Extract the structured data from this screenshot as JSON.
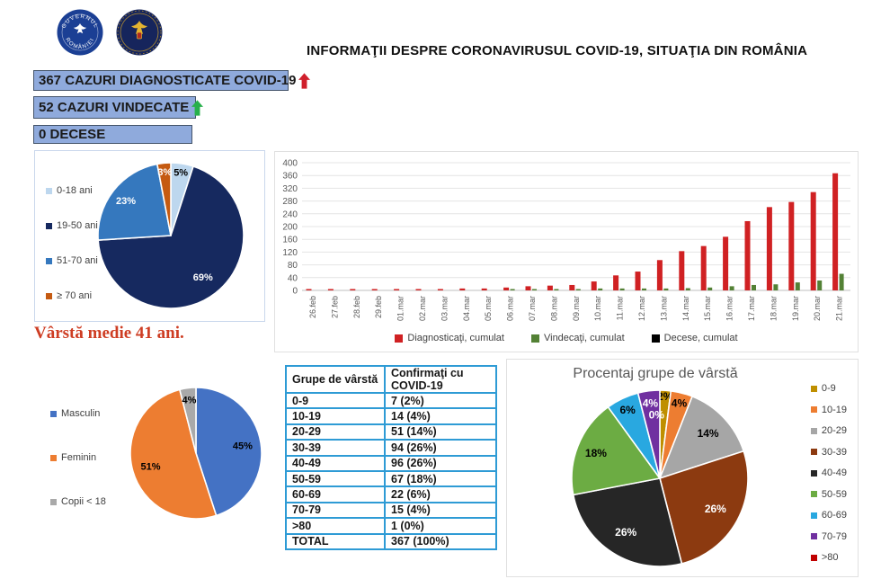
{
  "header": {
    "title": "INFORMAŢII DESPRE CORONAVIRUSUL COVID-19, SITUAŢIA DIN ROMÂNIA",
    "logo1_text_top": "GUVERNUL",
    "logo1_text_bottom": "ROMÂNIEI"
  },
  "stats": [
    {
      "label": "367 CAZURI DIAGNOSTICATE COVID-19",
      "arrow": "up",
      "arrow_color": "#D0202C"
    },
    {
      "label": "52 CAZURI VINDECATE",
      "arrow": "up",
      "arrow_color": "#27B04B"
    },
    {
      "label": "0 DECESE",
      "arrow": null,
      "arrow_color": null
    }
  ],
  "average_age_note": "Vârstă medie 41 ani.",
  "colors": {
    "stat_box_bg": "#8FAADC",
    "stat_box_border": "#44546A",
    "table_border": "#2E9BD5",
    "note_red": "#CE3D23",
    "panel_border": "#E0E0E0",
    "pie_panel_border": "#C9D7EC"
  },
  "table": {
    "headers": [
      "Grupe de vârstă",
      "Confirmaţi cu COVID-19"
    ],
    "rows": [
      [
        "0-9",
        "7 (2%)"
      ],
      [
        "10-19",
        "14 (4%)"
      ],
      [
        "20-29",
        "51 (14%)"
      ],
      [
        "30-39",
        "94 (26%)"
      ],
      [
        "40-49",
        "96 (26%)"
      ],
      [
        "50-59",
        "67 (18%)"
      ],
      [
        "60-69",
        "22 (6%)"
      ],
      [
        "70-79",
        "15 (4%)"
      ],
      [
        ">80",
        "1 (0%)"
      ],
      [
        "TOTAL",
        "367 (100%)"
      ]
    ]
  },
  "chart_data": [
    {
      "type": "pie",
      "name": "age-groups-pie",
      "labels": [
        "0-18 ani",
        "19-50 ani",
        "51-70 ani",
        "≥ 70 ani"
      ],
      "values": [
        5,
        69,
        23,
        3
      ],
      "colors": [
        "#BDD7EE",
        "#16295F",
        "#3578BE",
        "#C55A11"
      ],
      "slice_labels": [
        "5%",
        "69%",
        "23%",
        "3%"
      ],
      "slice_label_colors": [
        "#000000",
        "#FFFFFF",
        "#FFFFFF",
        "#FFFFFF"
      ],
      "slice_label_r": [
        0.88,
        0.72,
        0.78,
        0.88
      ],
      "slice_label_size": 11,
      "legend_position": "left"
    },
    {
      "type": "bar",
      "name": "cumulative-cases-bar",
      "categories": [
        "26.feb",
        "27.feb",
        "28.feb",
        "29.feb",
        "01.mar",
        "02.mar",
        "03.mar",
        "04.mar",
        "05.mar",
        "06.mar",
        "07.mar",
        "08.mar",
        "09.mar",
        "10.mar",
        "11.mar",
        "12.mar",
        "13.mar",
        "14.mar",
        "15.mar",
        "16.mar",
        "17.mar",
        "18.mar",
        "19.mar",
        "20.mar",
        "21.mar"
      ],
      "series": [
        {
          "name": "Diagnosticaţi, cumulat",
          "color": "#D02123",
          "values": [
            1,
            3,
            3,
            3,
            3,
            3,
            4,
            6,
            6,
            9,
            13,
            15,
            17,
            28,
            47,
            59,
            95,
            123,
            139,
            168,
            217,
            261,
            277,
            308,
            367
          ]
        },
        {
          "name": "Vindecaţi, cumulat",
          "color": "#538135",
          "values": [
            0,
            0,
            0,
            0,
            0,
            0,
            0,
            0,
            0,
            1,
            1,
            3,
            3,
            6,
            6,
            6,
            6,
            7,
            9,
            13,
            17,
            19,
            25,
            31,
            52
          ]
        },
        {
          "name": "Decese, cumulat",
          "color": "#000000",
          "values": [
            0,
            0,
            0,
            0,
            0,
            0,
            0,
            0,
            0,
            0,
            0,
            0,
            0,
            0,
            0,
            0,
            0,
            0,
            0,
            0,
            0,
            0,
            0,
            0,
            0
          ]
        }
      ],
      "ylim": [
        0,
        400
      ],
      "ytick_step": 40,
      "grid": true,
      "legend_position": "bottom"
    },
    {
      "type": "pie",
      "name": "gender-pie",
      "labels": [
        "Masculin",
        "Feminin",
        "Copii < 18"
      ],
      "values": [
        45,
        51,
        4
      ],
      "colors": [
        "#4472C4",
        "#ED7D31",
        "#A9A9A9"
      ],
      "slice_labels": [
        "45%",
        "51%",
        "4%"
      ],
      "slice_label_colors": [
        "#000000",
        "#000000",
        "#000000"
      ],
      "slice_label_r": [
        0.72,
        0.72,
        0.82
      ],
      "slice_label_size": 11,
      "legend_position": "left"
    },
    {
      "type": "pie",
      "name": "age-percent-pie",
      "title": "Procentaj grupe de vârstă",
      "labels": [
        "0-9",
        "10-19",
        "20-29",
        "30-39",
        "40-49",
        "50-59",
        "60-69",
        "70-79",
        ">80"
      ],
      "values": [
        2,
        4,
        14,
        26,
        26,
        18,
        6,
        4,
        0
      ],
      "colors": [
        "#BF8F00",
        "#ED7D31",
        "#A6A6A6",
        "#8C3A10",
        "#262626",
        "#6CAC43",
        "#29A8E0",
        "#7030A0",
        "#C00000"
      ],
      "slice_labels": [
        "2%",
        "4%",
        "14%",
        "26%",
        "26%",
        "18%",
        "6%",
        "4%",
        "0%"
      ],
      "slice_label_colors": [
        "#000000",
        "#000000",
        "#000000",
        "#FFFFFF",
        "#FFFFFF",
        "#000000",
        "#000000",
        "#FFFFFF",
        "#FFFFFF"
      ],
      "slice_label_r": [
        0.93,
        0.88,
        0.75,
        0.72,
        0.72,
        0.78,
        0.86,
        0.86,
        0.72
      ],
      "slice_label_a": [
        null,
        null,
        null,
        null,
        null,
        null,
        null,
        null,
        357
      ],
      "slice_label_size": 12,
      "legend_position": "right"
    }
  ]
}
